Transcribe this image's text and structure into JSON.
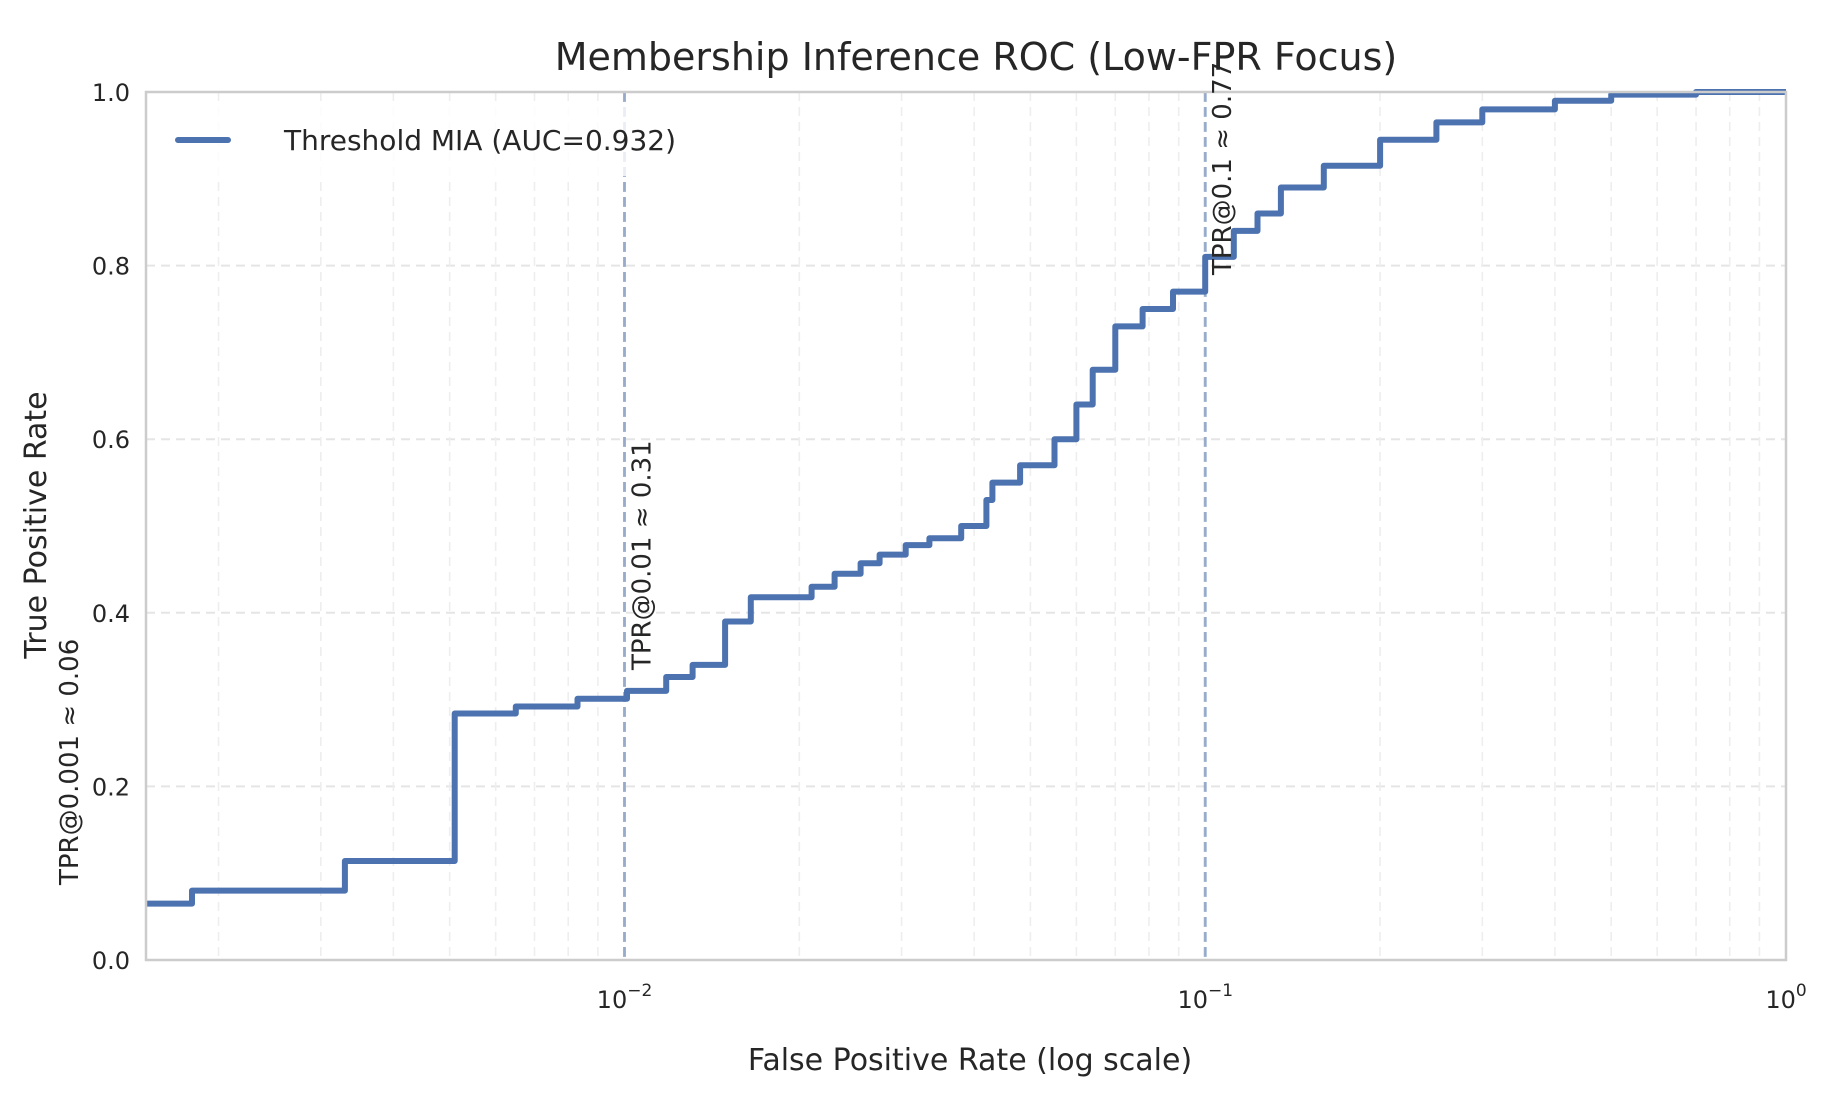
{
  "chart_data": {
    "type": "line",
    "title": "Membership Inference ROC (Low-FPR Focus)",
    "xlabel": "False Positive Rate (log scale)",
    "ylabel": "True Positive Rate",
    "x_scale": "log",
    "xlim": [
      0.0015,
      1.0
    ],
    "ylim": [
      0.0,
      1.0
    ],
    "x_ticks": [
      {
        "value": 0.01,
        "base": "10",
        "exp": "−2"
      },
      {
        "value": 0.1,
        "base": "10",
        "exp": "−1"
      },
      {
        "value": 1,
        "base": "10",
        "exp": "0"
      }
    ],
    "y_ticks": [
      {
        "value": 0.0,
        "label": "0.0"
      },
      {
        "value": 0.2,
        "label": "0.2"
      },
      {
        "value": 0.4,
        "label": "0.4"
      },
      {
        "value": 0.6,
        "label": "0.6"
      },
      {
        "value": 0.8,
        "label": "0.8"
      },
      {
        "value": 1.0,
        "label": "1.0"
      }
    ],
    "grid": true,
    "legend_position": "top-left",
    "color": "#4c72b0",
    "series": [
      {
        "name": "Threshold MIA (AUC=0.932)",
        "x": [
          0.0015,
          0.0018,
          0.0018,
          0.0033,
          0.0033,
          0.0051,
          0.0051,
          0.0065,
          0.0065,
          0.0083,
          0.0083,
          0.0101,
          0.0101,
          0.0118,
          0.0118,
          0.0131,
          0.0131,
          0.0149,
          0.0149,
          0.0165,
          0.0165,
          0.021,
          0.021,
          0.023,
          0.023,
          0.0255,
          0.0255,
          0.0275,
          0.0275,
          0.0305,
          0.0305,
          0.0335,
          0.0335,
          0.038,
          0.038,
          0.042,
          0.042,
          0.043,
          0.043,
          0.048,
          0.048,
          0.055,
          0.055,
          0.06,
          0.06,
          0.064,
          0.064,
          0.07,
          0.07,
          0.078,
          0.078,
          0.088,
          0.088,
          0.1,
          0.1,
          0.112,
          0.112,
          0.123,
          0.123,
          0.135,
          0.135,
          0.16,
          0.16,
          0.2,
          0.2,
          0.25,
          0.25,
          0.3,
          0.3,
          0.4,
          0.4,
          0.5,
          0.5,
          0.7,
          0.7,
          1.0
        ],
        "y": [
          0.065,
          0.065,
          0.08,
          0.08,
          0.114,
          0.114,
          0.284,
          0.284,
          0.292,
          0.292,
          0.301,
          0.301,
          0.31,
          0.31,
          0.326,
          0.326,
          0.34,
          0.34,
          0.39,
          0.39,
          0.418,
          0.418,
          0.43,
          0.43,
          0.445,
          0.445,
          0.457,
          0.457,
          0.467,
          0.467,
          0.478,
          0.478,
          0.486,
          0.486,
          0.5,
          0.5,
          0.53,
          0.53,
          0.55,
          0.55,
          0.57,
          0.57,
          0.6,
          0.6,
          0.64,
          0.64,
          0.68,
          0.68,
          0.73,
          0.73,
          0.75,
          0.75,
          0.77,
          0.77,
          0.81,
          0.81,
          0.84,
          0.84,
          0.86,
          0.86,
          0.89,
          0.89,
          0.915,
          0.915,
          0.945,
          0.945,
          0.965,
          0.965,
          0.98,
          0.98,
          0.99,
          0.99,
          0.997,
          0.997,
          1.0,
          1.0
        ]
      }
    ],
    "reference_lines": [
      {
        "x": 0.01,
        "label": "TPR@0.01 ≈ 0.31"
      },
      {
        "x": 0.1,
        "label": "TPR@0.1 ≈ 0.77"
      }
    ],
    "annotations": [
      {
        "x": 0.0015,
        "label": "TPR@0.001 ≈ 0.06"
      },
      {
        "x": 0.01,
        "label": "TPR@0.01 ≈ 0.31"
      },
      {
        "x": 0.1,
        "label": "TPR@0.1 ≈ 0.77"
      }
    ]
  }
}
